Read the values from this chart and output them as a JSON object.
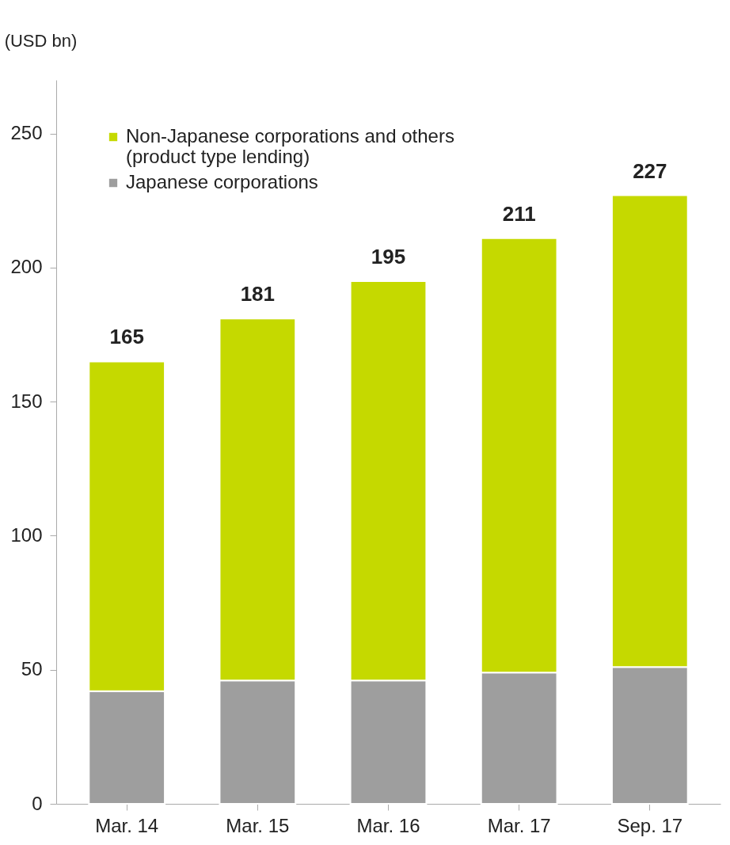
{
  "chart_data": {
    "type": "bar",
    "stacked": true,
    "ylabel": "(USD bn)",
    "categories": [
      "Mar. 14",
      "Mar. 15",
      "Mar. 16",
      "Mar. 17",
      "Sep. 17"
    ],
    "series": [
      {
        "name": "Japanese corporations",
        "color": "#9e9e9e",
        "values": [
          42,
          46,
          46,
          49,
          51
        ]
      },
      {
        "name": "Non-Japanese corporations and others\n(product type lending)",
        "color": "#c5d900",
        "values": [
          123,
          135,
          149,
          162,
          176
        ]
      }
    ],
    "totals": [
      "165",
      "181",
      "195",
      "211",
      "227"
    ],
    "ylim": [
      0,
      270
    ],
    "yticks": [
      0,
      50,
      100,
      150,
      200,
      250
    ],
    "grid": false,
    "legend": "top left"
  }
}
